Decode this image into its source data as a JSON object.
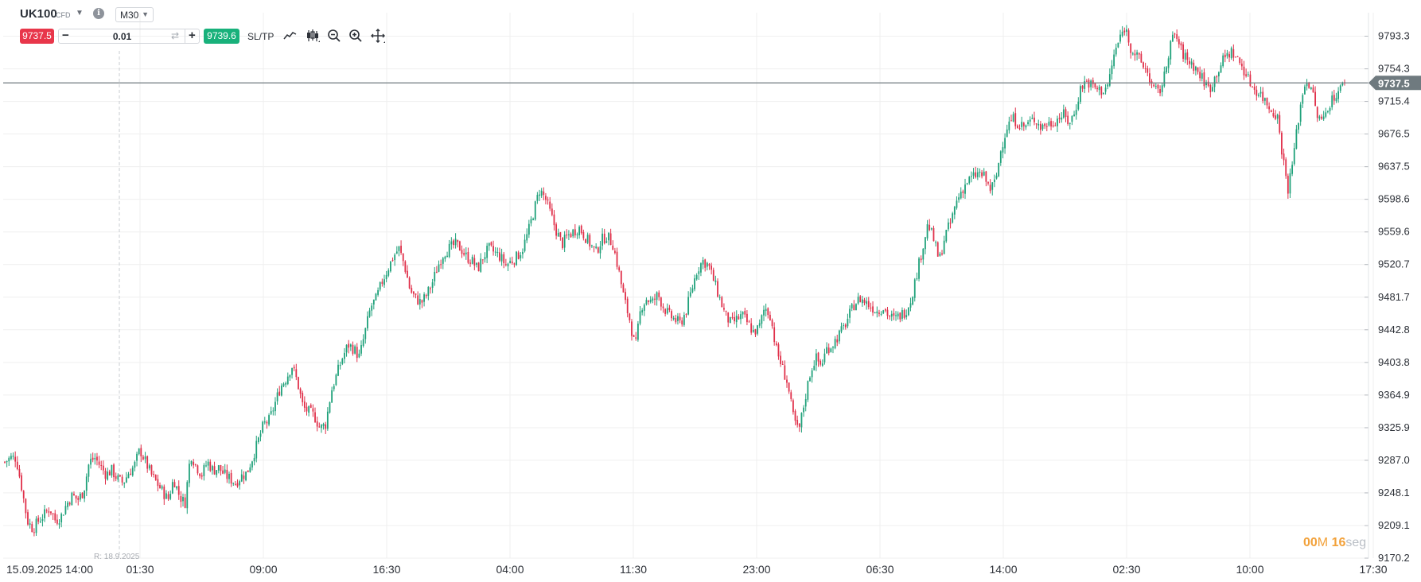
{
  "header": {
    "symbol": "UK100",
    "instrument_type": "CFD",
    "info_glyph": "i",
    "timeframe": "M30",
    "sell_price": "9737.5",
    "quantity": "0.01",
    "buy_price": "9739.6",
    "sltp_label": "SL/TP",
    "tools": [
      "line-chart-icon",
      "candlestick-icon",
      "zoom-out-icon",
      "zoom-in-icon",
      "move-icon"
    ]
  },
  "countdown": {
    "minutes": "00",
    "minutes_unit": "M",
    "seconds": "16",
    "seconds_unit": "seg"
  },
  "colors": {
    "up": "#1fa17a",
    "down": "#e0304a",
    "price_line": "#6f7a7f",
    "grid": "#efefef"
  },
  "chart_data": {
    "type": "candlestick",
    "x_ticks": [
      "15.09.2025 14:00",
      "01:30",
      "09:00",
      "16:30",
      "04:00",
      "11:30",
      "23:00",
      "06:30",
      "14:00",
      "02:30",
      "10:00",
      "17:30"
    ],
    "y_ticks": [
      9793.3,
      9754.3,
      9715.4,
      9676.5,
      9637.5,
      9598.6,
      9559.6,
      9520.7,
      9481.7,
      9442.8,
      9403.8,
      9364.9,
      9325.9,
      9287.0,
      9248.1,
      9209.1,
      9170.2
    ],
    "ylim": [
      9170.2,
      9808.0
    ],
    "current_price": 9737.5,
    "current_price_label": "9737.5",
    "cursor_label": "R: 18.9.2025",
    "grid": true,
    "series": [
      {
        "values": [
          9285,
          9290,
          9290,
          9255,
          9215,
          9205,
          9215,
          9222,
          9230,
          9215,
          9220,
          9235,
          9245,
          9240,
          9250,
          9285,
          9290,
          9280,
          9270,
          9275,
          9265,
          9260,
          9272,
          9280,
          9300,
          9285,
          9270,
          9260,
          9250,
          9240,
          9265,
          9245,
          9235,
          9295,
          9280,
          9270,
          9285,
          9275,
          9278,
          9270,
          9265,
          9260,
          9268,
          9272,
          9290,
          9310,
          9330,
          9335,
          9355,
          9375,
          9385,
          9400,
          9380,
          9350,
          9345,
          9340,
          9325,
          9330,
          9370,
          9390,
          9410,
          9425,
          9420,
          9410,
          9440,
          9470,
          9480,
          9500,
          9515,
          9530,
          9540,
          9520,
          9490,
          9480,
          9475,
          9485,
          9500,
          9520,
          9535,
          9540,
          9545,
          9540,
          9530,
          9525,
          9515,
          9530,
          9540,
          9535,
          9530,
          9520,
          9525,
          9530,
          9540,
          9560,
          9585,
          9610,
          9600,
          9580,
          9560,
          9545,
          9555,
          9560,
          9565,
          9555,
          9545,
          9535,
          9550,
          9555,
          9545,
          9515,
          9480,
          9455,
          9420,
          9470,
          9480,
          9475,
          9485,
          9470,
          9460,
          9455,
          9450,
          9465,
          9490,
          9515,
          9525,
          9520,
          9500,
          9480,
          9460,
          9450,
          9455,
          9460,
          9450,
          9440,
          9445,
          9470,
          9460,
          9420,
          9400,
          9380,
          9340,
          9320,
          9355,
          9390,
          9410,
          9400,
          9420,
          9425,
          9435,
          9445,
          9460,
          9475,
          9480,
          9475,
          9470,
          9465,
          9470,
          9460,
          9455,
          9460,
          9465,
          9480,
          9510,
          9540,
          9570,
          9550,
          9525,
          9555,
          9570,
          9595,
          9610,
          9620,
          9625,
          9630,
          9625,
          9610,
          9620,
          9660,
          9685,
          9695,
          9690,
          9685,
          9690,
          9695,
          9685,
          9688,
          9690,
          9695,
          9700,
          9690,
          9700,
          9730,
          9740,
          9735,
          9730,
          9728,
          9735,
          9770,
          9790,
          9805,
          9780,
          9770,
          9760,
          9750,
          9730,
          9725,
          9745,
          9785,
          9795,
          9775,
          9765,
          9760,
          9750,
          9740,
          9730,
          9745,
          9760,
          9770,
          9775,
          9765,
          9755,
          9740,
          9730,
          9725,
          9715,
          9705,
          9700,
          9650,
          9610,
          9655,
          9705,
          9740,
          9735,
          9700,
          9690,
          9710,
          9720,
          9728,
          9737.5
        ]
      }
    ]
  }
}
